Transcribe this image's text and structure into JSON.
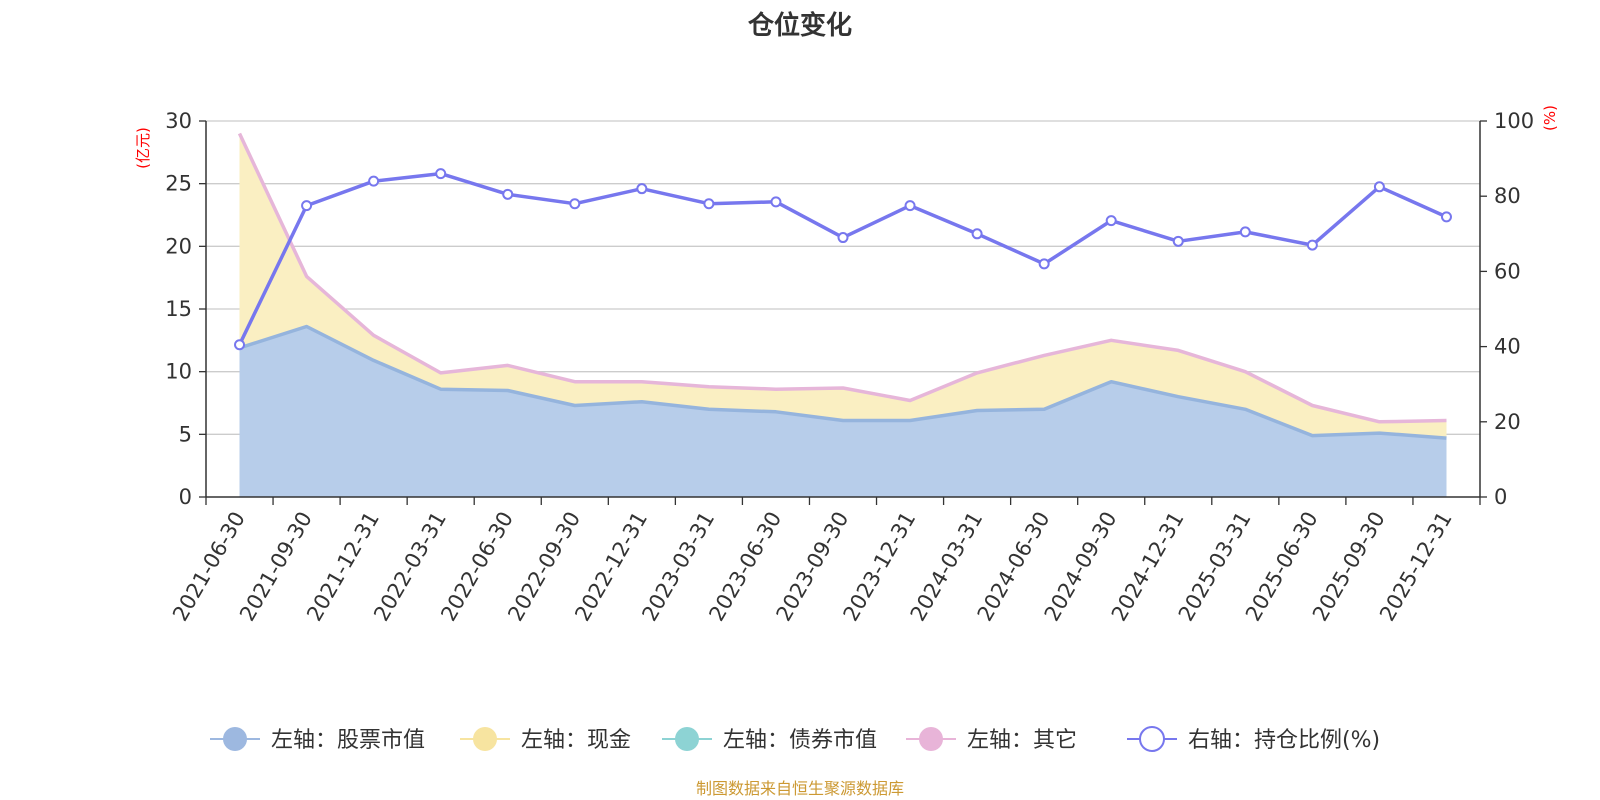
{
  "chart_data": {
    "type": "area",
    "title": "仓位变化",
    "left_axis_unit": "(亿元)",
    "right_axis_unit": "(%)",
    "left_ylim": [
      0,
      30
    ],
    "left_ticks": [
      0,
      5,
      10,
      15,
      20,
      25,
      30
    ],
    "right_ylim": [
      0,
      100
    ],
    "right_ticks": [
      0,
      20,
      40,
      60,
      80,
      100
    ],
    "categories": [
      "2021-06-30",
      "2021-09-30",
      "2021-12-31",
      "2022-03-31",
      "2022-06-30",
      "2022-09-30",
      "2022-12-31",
      "2023-03-31",
      "2023-06-30",
      "2023-09-30",
      "2023-12-31",
      "2024-03-31",
      "2024-06-30",
      "2024-09-30",
      "2024-12-31",
      "2025-03-31",
      "2025-06-30",
      "2025-09-30",
      "2025-12-31"
    ],
    "series": [
      {
        "name": "左轴：股票市值",
        "axis": "left",
        "type": "area",
        "color": "#9db8e0",
        "values": [
          11.9,
          13.6,
          10.9,
          8.6,
          8.5,
          7.3,
          7.6,
          7.0,
          6.8,
          6.1,
          6.1,
          6.9,
          7.0,
          9.2,
          8.0,
          7.0,
          4.9,
          5.1,
          4.7
        ]
      },
      {
        "name": "左轴：现金",
        "axis": "left",
        "type": "area",
        "color": "#f7e4a0",
        "values": [
          17.1,
          4.0,
          2.0,
          1.3,
          2.0,
          1.9,
          1.6,
          1.8,
          1.8,
          2.6,
          1.6,
          3.0,
          4.3,
          3.3,
          3.7,
          3.0,
          2.4,
          0.9,
          1.4
        ]
      },
      {
        "name": "左轴：债券市值",
        "axis": "left",
        "type": "area",
        "color": "#8dd3d4",
        "values": [
          0,
          0,
          0,
          0,
          0,
          0,
          0,
          0,
          0,
          0,
          0,
          0,
          0,
          0,
          0,
          0,
          0,
          0,
          0
        ]
      },
      {
        "name": "左轴：其它",
        "axis": "left",
        "type": "area",
        "color": "#e8b4d8",
        "values": [
          0,
          0,
          0,
          0,
          0,
          0,
          0,
          0,
          0,
          0,
          0,
          0,
          0,
          0,
          0,
          0,
          0,
          0,
          0
        ]
      },
      {
        "name": "右轴：持仓比例(%)",
        "axis": "right",
        "type": "line",
        "color": "#7777ee",
        "values": [
          40.5,
          77.5,
          84.0,
          86.0,
          80.5,
          78.0,
          82.0,
          78.0,
          78.5,
          69.0,
          77.5,
          70.0,
          62.0,
          73.5,
          68.0,
          70.5,
          67.0,
          82.5,
          74.5
        ]
      }
    ]
  },
  "source_note": "制图数据来自恒生聚源数据库",
  "colors": {
    "axis": "#333333",
    "grid": "#cccccc",
    "unit_label": "#ff0000",
    "source": "#cc9933",
    "stock_line": "#95b4dd",
    "stock_fill": "#b7cdea",
    "cash_fill": "#faefc2",
    "other_line": "#e6b6d9"
  }
}
